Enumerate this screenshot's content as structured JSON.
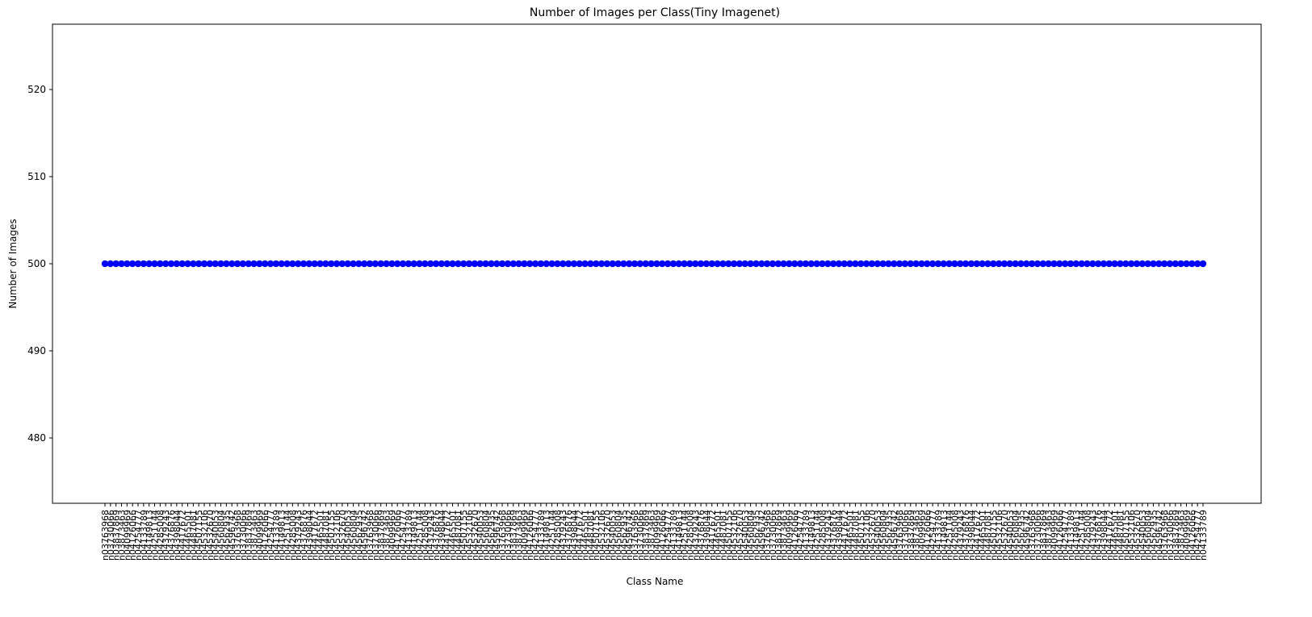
{
  "chart_data": {
    "type": "scatter",
    "title": "Number of Images per Class(Tiny Imagenet)",
    "xlabel": "Class Name",
    "ylabel": "Number of Images",
    "ylim": [
      472.5,
      527.5
    ],
    "yticks": [
      480,
      490,
      500,
      510,
      520
    ],
    "y_value": 500,
    "num_classes": 200,
    "xtick_labels_visible": [
      "n03763968",
      "n03730066",
      "n03837869",
      "n03873463",
      "n04099969",
      "n04126066",
      "n04254777",
      "n04133789",
      "n04149813",
      "n04251144",
      "n04285008",
      "n04379243",
      "n04376876",
      "n04398044",
      "n04417672",
      "n04465501",
      "n04487081",
      "n04507155",
      "n04532106",
      "n04532670",
      "n04540053",
      "n04560804",
      "n04562935",
      "n04596742"
    ],
    "color": "#0000ff",
    "grid": false,
    "legend": "none"
  }
}
